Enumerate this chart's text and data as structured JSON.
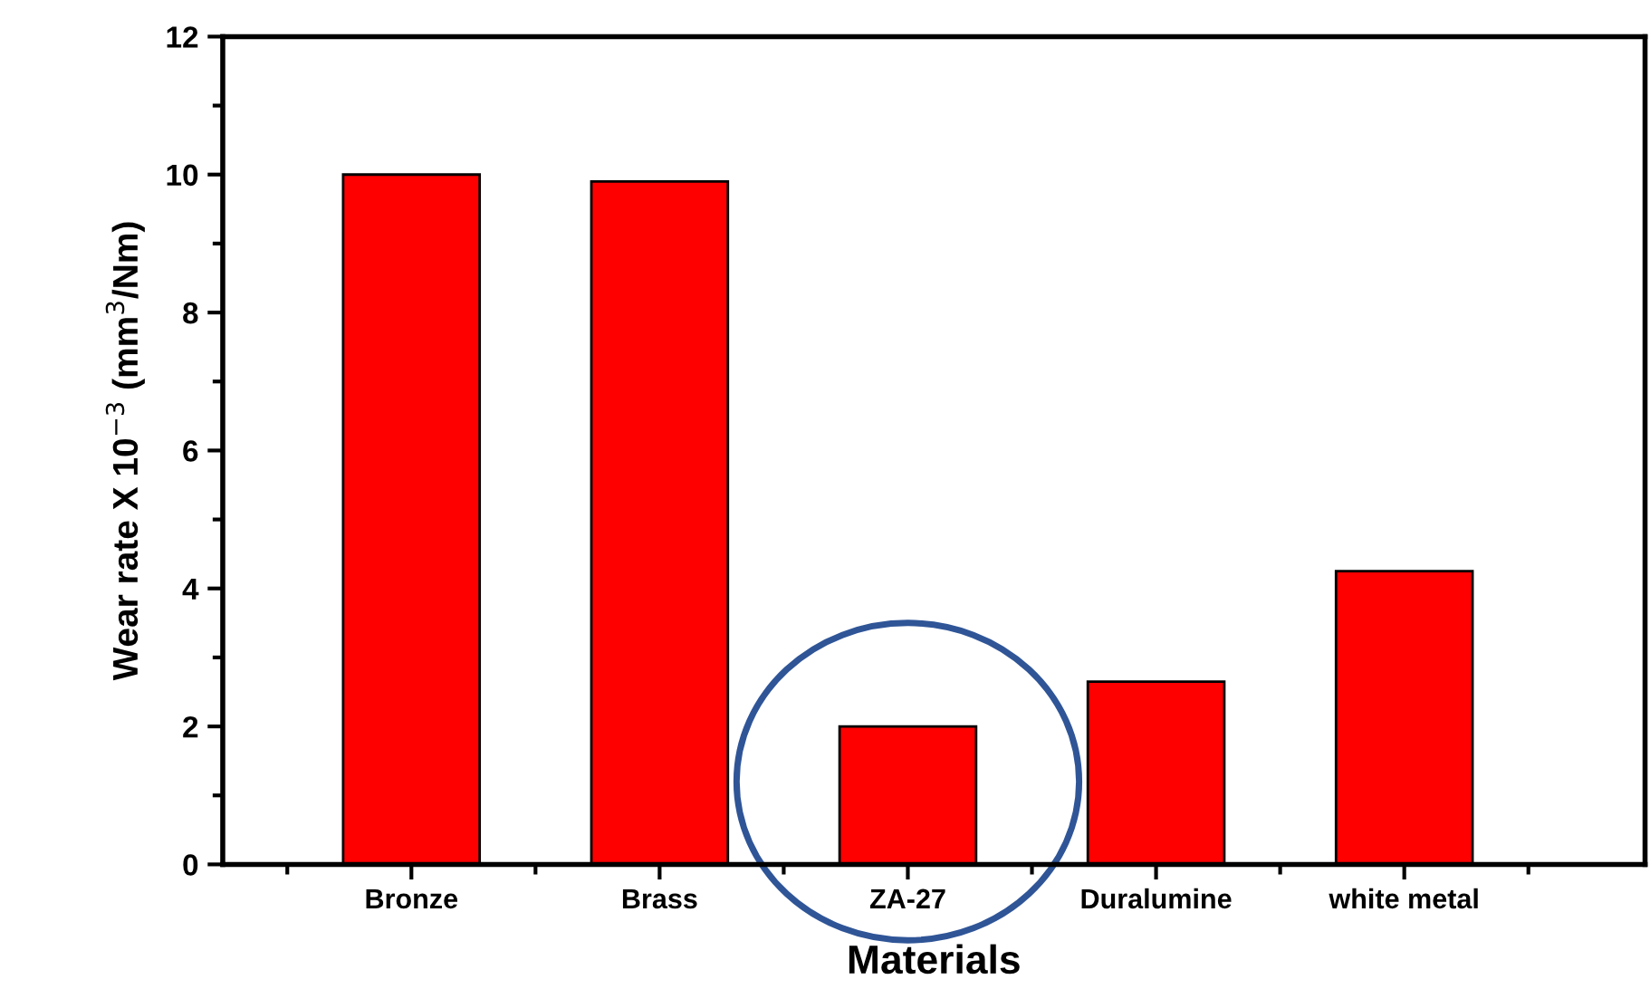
{
  "chart_data": {
    "type": "bar",
    "xlabel": "Materials",
    "ylabel": "Wear rate X 10$^{−3}$ (mm$^{3}$/Nm)",
    "categories": [
      "Bronze",
      "Brass",
      "ZA-27",
      "Duralumine",
      "white metal"
    ],
    "values": [
      10.0,
      9.9,
      2.0,
      2.65,
      4.25
    ],
    "color": "#ff0000",
    "ylim": [
      0,
      12
    ],
    "yticks": [
      0,
      2,
      4,
      6,
      8,
      10,
      12
    ],
    "grid": false
  }
}
